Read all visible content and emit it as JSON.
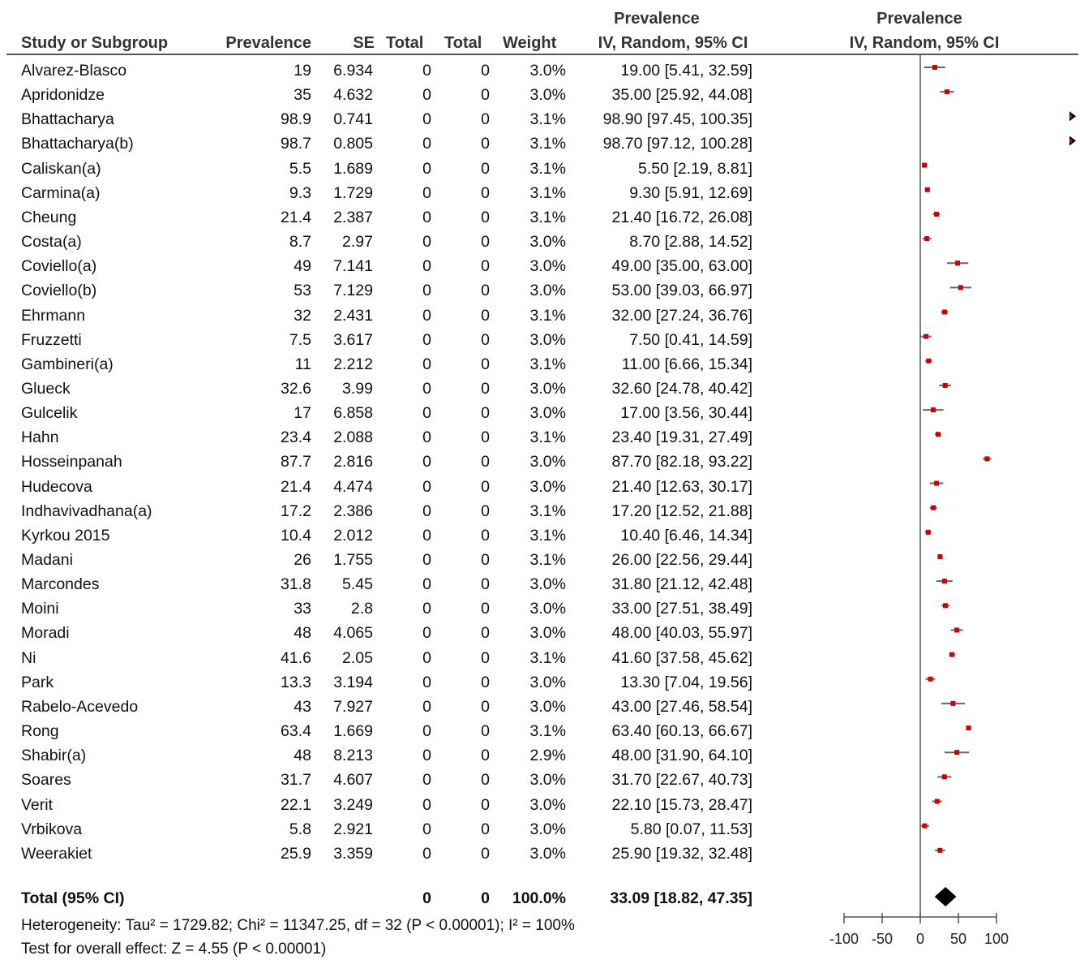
{
  "headers": {
    "study": "Study or Subgroup",
    "prevalence": "Prevalence",
    "se": "SE",
    "total1": "Total",
    "total2": "Total",
    "weight": "Weight",
    "ci_top": "Prevalence",
    "ci_bottom": "IV, Random, 95% CI",
    "plot_top": "Prevalence",
    "plot_bottom": "IV, Random, 95% CI"
  },
  "chart_data": {
    "type": "forest",
    "x_axis": {
      "range": [
        -100,
        100
      ],
      "ticks": [
        "-100",
        "-50",
        "0",
        "50",
        "100"
      ],
      "tick_values": [
        -100,
        -50,
        0,
        50,
        100
      ]
    },
    "studies": [
      {
        "name": "Alvarez-Blasco",
        "prevalence": "19",
        "se": "6.934",
        "total1": "0",
        "total2": "0",
        "weight": "3.0%",
        "ci": "19.00 [5.41, 32.59]",
        "est": 19.0,
        "lo": 5.41,
        "hi": 32.59
      },
      {
        "name": "Apridonidze",
        "prevalence": "35",
        "se": "4.632",
        "total1": "0",
        "total2": "0",
        "weight": "3.0%",
        "ci": "35.00 [25.92, 44.08]",
        "est": 35.0,
        "lo": 25.92,
        "hi": 44.08
      },
      {
        "name": "Bhattacharya",
        "prevalence": "98.9",
        "se": "0.741",
        "total1": "0",
        "total2": "0",
        "weight": "3.1%",
        "ci": "98.90 [97.45, 100.35]",
        "est": 98.9,
        "lo": 97.45,
        "hi": 100.35
      },
      {
        "name": "Bhattacharya(b)",
        "prevalence": "98.7",
        "se": "0.805",
        "total1": "0",
        "total2": "0",
        "weight": "3.1%",
        "ci": "98.70 [97.12, 100.28]",
        "est": 98.7,
        "lo": 97.12,
        "hi": 100.28
      },
      {
        "name": "Caliskan(a)",
        "prevalence": "5.5",
        "se": "1.689",
        "total1": "0",
        "total2": "0",
        "weight": "3.1%",
        "ci": "5.50 [2.19, 8.81]",
        "est": 5.5,
        "lo": 2.19,
        "hi": 8.81
      },
      {
        "name": "Carmina(a)",
        "prevalence": "9.3",
        "se": "1.729",
        "total1": "0",
        "total2": "0",
        "weight": "3.1%",
        "ci": "9.30 [5.91, 12.69]",
        "est": 9.3,
        "lo": 5.91,
        "hi": 12.69
      },
      {
        "name": "Cheung",
        "prevalence": "21.4",
        "se": "2.387",
        "total1": "0",
        "total2": "0",
        "weight": "3.1%",
        "ci": "21.40 [16.72, 26.08]",
        "est": 21.4,
        "lo": 16.72,
        "hi": 26.08
      },
      {
        "name": "Costa(a)",
        "prevalence": "8.7",
        "se": "2.97",
        "total1": "0",
        "total2": "0",
        "weight": "3.0%",
        "ci": "8.70 [2.88, 14.52]",
        "est": 8.7,
        "lo": 2.88,
        "hi": 14.52
      },
      {
        "name": "Coviello(a)",
        "prevalence": "49",
        "se": "7.141",
        "total1": "0",
        "total2": "0",
        "weight": "3.0%",
        "ci": "49.00 [35.00, 63.00]",
        "est": 49.0,
        "lo": 35.0,
        "hi": 63.0
      },
      {
        "name": "Coviello(b)",
        "prevalence": "53",
        "se": "7.129",
        "total1": "0",
        "total2": "0",
        "weight": "3.0%",
        "ci": "53.00 [39.03, 66.97]",
        "est": 53.0,
        "lo": 39.03,
        "hi": 66.97
      },
      {
        "name": "Ehrmann",
        "prevalence": "32",
        "se": "2.431",
        "total1": "0",
        "total2": "0",
        "weight": "3.1%",
        "ci": "32.00 [27.24, 36.76]",
        "est": 32.0,
        "lo": 27.24,
        "hi": 36.76
      },
      {
        "name": "Fruzzetti",
        "prevalence": "7.5",
        "se": "3.617",
        "total1": "0",
        "total2": "0",
        "weight": "3.0%",
        "ci": "7.50 [0.41, 14.59]",
        "est": 7.5,
        "lo": 0.41,
        "hi": 14.59
      },
      {
        "name": "Gambineri(a)",
        "prevalence": "11",
        "se": "2.212",
        "total1": "0",
        "total2": "0",
        "weight": "3.1%",
        "ci": "11.00 [6.66, 15.34]",
        "est": 11.0,
        "lo": 6.66,
        "hi": 15.34
      },
      {
        "name": "Glueck",
        "prevalence": "32.6",
        "se": "3.99",
        "total1": "0",
        "total2": "0",
        "weight": "3.0%",
        "ci": "32.60 [24.78, 40.42]",
        "est": 32.6,
        "lo": 24.78,
        "hi": 40.42
      },
      {
        "name": "Gulcelik",
        "prevalence": "17",
        "se": "6.858",
        "total1": "0",
        "total2": "0",
        "weight": "3.0%",
        "ci": "17.00 [3.56, 30.44]",
        "est": 17.0,
        "lo": 3.56,
        "hi": 30.44
      },
      {
        "name": "Hahn",
        "prevalence": "23.4",
        "se": "2.088",
        "total1": "0",
        "total2": "0",
        "weight": "3.1%",
        "ci": "23.40 [19.31, 27.49]",
        "est": 23.4,
        "lo": 19.31,
        "hi": 27.49
      },
      {
        "name": "Hosseinpanah",
        "prevalence": "87.7",
        "se": "2.816",
        "total1": "0",
        "total2": "0",
        "weight": "3.0%",
        "ci": "87.70 [82.18, 93.22]",
        "est": 87.7,
        "lo": 82.18,
        "hi": 93.22
      },
      {
        "name": "Hudecova",
        "prevalence": "21.4",
        "se": "4.474",
        "total1": "0",
        "total2": "0",
        "weight": "3.0%",
        "ci": "21.40 [12.63, 30.17]",
        "est": 21.4,
        "lo": 12.63,
        "hi": 30.17
      },
      {
        "name": "Indhavivadhana(a)",
        "prevalence": "17.2",
        "se": "2.386",
        "total1": "0",
        "total2": "0",
        "weight": "3.1%",
        "ci": "17.20 [12.52, 21.88]",
        "est": 17.2,
        "lo": 12.52,
        "hi": 21.88
      },
      {
        "name": "Kyrkou 2015",
        "prevalence": "10.4",
        "se": "2.012",
        "total1": "0",
        "total2": "0",
        "weight": "3.1%",
        "ci": "10.40 [6.46, 14.34]",
        "est": 10.4,
        "lo": 6.46,
        "hi": 14.34
      },
      {
        "name": "Madani",
        "prevalence": "26",
        "se": "1.755",
        "total1": "0",
        "total2": "0",
        "weight": "3.1%",
        "ci": "26.00 [22.56, 29.44]",
        "est": 26.0,
        "lo": 22.56,
        "hi": 29.44
      },
      {
        "name": "Marcondes",
        "prevalence": "31.8",
        "se": "5.45",
        "total1": "0",
        "total2": "0",
        "weight": "3.0%",
        "ci": "31.80 [21.12, 42.48]",
        "est": 31.8,
        "lo": 21.12,
        "hi": 42.48
      },
      {
        "name": "Moini",
        "prevalence": "33",
        "se": "2.8",
        "total1": "0",
        "total2": "0",
        "weight": "3.0%",
        "ci": "33.00 [27.51, 38.49]",
        "est": 33.0,
        "lo": 27.51,
        "hi": 38.49
      },
      {
        "name": "Moradi",
        "prevalence": "48",
        "se": "4.065",
        "total1": "0",
        "total2": "0",
        "weight": "3.0%",
        "ci": "48.00 [40.03, 55.97]",
        "est": 48.0,
        "lo": 40.03,
        "hi": 55.97
      },
      {
        "name": "Ni",
        "prevalence": "41.6",
        "se": "2.05",
        "total1": "0",
        "total2": "0",
        "weight": "3.1%",
        "ci": "41.60 [37.58, 45.62]",
        "est": 41.6,
        "lo": 37.58,
        "hi": 45.62
      },
      {
        "name": "Park",
        "prevalence": "13.3",
        "se": "3.194",
        "total1": "0",
        "total2": "0",
        "weight": "3.0%",
        "ci": "13.30 [7.04, 19.56]",
        "est": 13.3,
        "lo": 7.04,
        "hi": 19.56
      },
      {
        "name": "Rabelo-Acevedo",
        "prevalence": "43",
        "se": "7.927",
        "total1": "0",
        "total2": "0",
        "weight": "3.0%",
        "ci": "43.00 [27.46, 58.54]",
        "est": 43.0,
        "lo": 27.46,
        "hi": 58.54
      },
      {
        "name": "Rong",
        "prevalence": "63.4",
        "se": "1.669",
        "total1": "0",
        "total2": "0",
        "weight": "3.1%",
        "ci": "63.40 [60.13, 66.67]",
        "est": 63.4,
        "lo": 60.13,
        "hi": 66.67
      },
      {
        "name": "Shabir(a)",
        "prevalence": "48",
        "se": "8.213",
        "total1": "0",
        "total2": "0",
        "weight": "2.9%",
        "ci": "48.00 [31.90, 64.10]",
        "est": 48.0,
        "lo": 31.9,
        "hi": 64.1
      },
      {
        "name": "Soares",
        "prevalence": "31.7",
        "se": "4.607",
        "total1": "0",
        "total2": "0",
        "weight": "3.0%",
        "ci": "31.70 [22.67, 40.73]",
        "est": 31.7,
        "lo": 22.67,
        "hi": 40.73
      },
      {
        "name": "Verit",
        "prevalence": "22.1",
        "se": "3.249",
        "total1": "0",
        "total2": "0",
        "weight": "3.0%",
        "ci": "22.10 [15.73, 28.47]",
        "est": 22.1,
        "lo": 15.73,
        "hi": 28.47
      },
      {
        "name": "Vrbikova",
        "prevalence": "5.8",
        "se": "2.921",
        "total1": "0",
        "total2": "0",
        "weight": "3.0%",
        "ci": "5.80 [0.07, 11.53]",
        "est": 5.8,
        "lo": 0.07,
        "hi": 11.53
      },
      {
        "name": "Weerakiet",
        "prevalence": "25.9",
        "se": "3.359",
        "total1": "0",
        "total2": "0",
        "weight": "3.0%",
        "ci": "25.90 [19.32, 32.48]",
        "est": 25.9,
        "lo": 19.32,
        "hi": 32.48
      }
    ],
    "total": {
      "label": "Total (95% CI)",
      "total1": "0",
      "total2": "0",
      "weight": "100.0%",
      "ci": "33.09 [18.82, 47.35]",
      "est": 33.09,
      "lo": 18.82,
      "hi": 47.35
    }
  },
  "footer": {
    "heterogeneity": "Heterogeneity: Tau² = 1729.82; Chi² = 11347.25, df = 32 (P < 0.00001); I² = 100%",
    "overall": "Test for overall effect: Z = 4.55 (P < 0.00001)"
  },
  "colors": {
    "point": "#cc0000",
    "ci_line": "#666666",
    "diamond": "#000000",
    "axis": "#555555"
  }
}
